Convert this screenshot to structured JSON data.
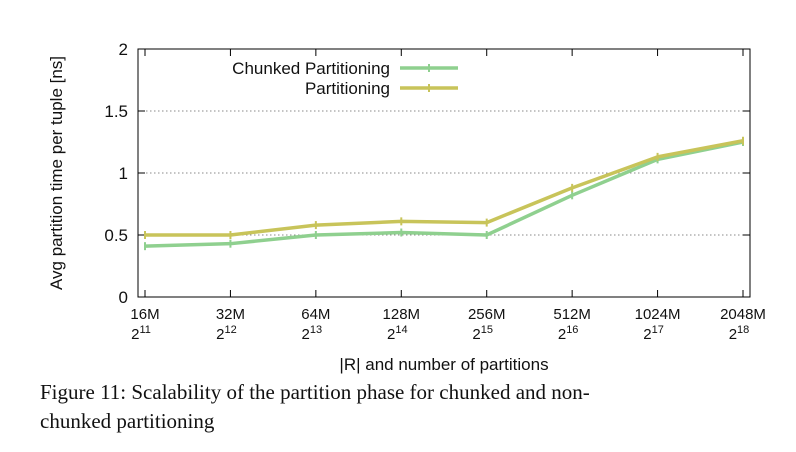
{
  "chart_data": {
    "type": "line",
    "xlabel": "|R| and number of partitions",
    "ylabel": "Avg partition time per tuple [ns]",
    "ylim": [
      0,
      2
    ],
    "yticks": [
      "0",
      "0.5",
      "1",
      "1.5",
      "2"
    ],
    "grid": "horizontal dotted",
    "legend_position": "top-left",
    "categories": [
      {
        "size": "16M",
        "base": "2",
        "exp": "11"
      },
      {
        "size": "32M",
        "base": "2",
        "exp": "12"
      },
      {
        "size": "64M",
        "base": "2",
        "exp": "13"
      },
      {
        "size": "128M",
        "base": "2",
        "exp": "14"
      },
      {
        "size": "256M",
        "base": "2",
        "exp": "15"
      },
      {
        "size": "512M",
        "base": "2",
        "exp": "16"
      },
      {
        "size": "1024M",
        "base": "2",
        "exp": "17"
      },
      {
        "size": "2048M",
        "base": "2",
        "exp": "18"
      }
    ],
    "series": [
      {
        "name": "Chunked Partitioning",
        "color": "#8fd08f",
        "values": [
          0.41,
          0.43,
          0.5,
          0.52,
          0.5,
          0.82,
          1.11,
          1.25
        ]
      },
      {
        "name": "Partitioning",
        "color": "#c8c45a",
        "values": [
          0.5,
          0.5,
          0.58,
          0.61,
          0.6,
          0.88,
          1.13,
          1.26
        ]
      }
    ]
  },
  "caption": {
    "line1": "Figure 11: Scalability of the partition phase for chunked and non-",
    "line2": "chunked partitioning"
  }
}
